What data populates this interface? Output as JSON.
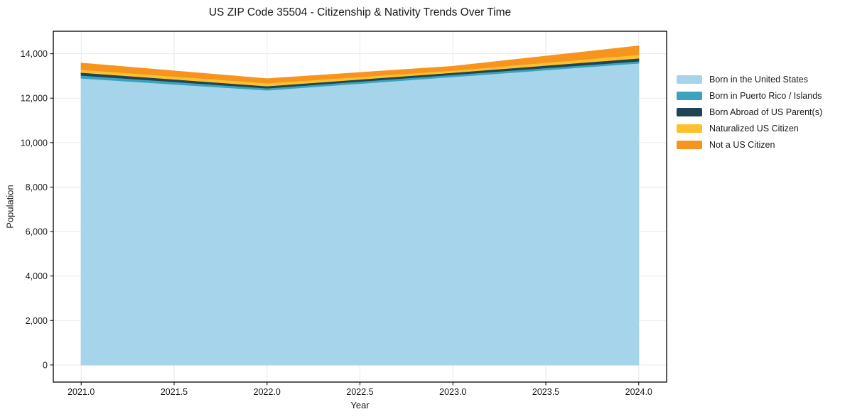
{
  "chart_data": {
    "type": "area",
    "stacked": true,
    "title": "US ZIP Code 35504 - Citizenship & Nativity Trends Over Time",
    "xlabel": "Year",
    "ylabel": "Population",
    "x": [
      2021,
      2022,
      2023,
      2024
    ],
    "series": [
      {
        "name": "Born in the United States",
        "color": "#a6d4ea",
        "values": [
          12900,
          12360,
          12965,
          13575
        ]
      },
      {
        "name": "Born in Puerto Rico / Islands",
        "color": "#3ba3bd",
        "values": [
          130,
          95,
          95,
          95
        ]
      },
      {
        "name": "Born Abroad of US Parent(s)",
        "color": "#1f4456",
        "values": [
          130,
          95,
          95,
          130
        ]
      },
      {
        "name": "Naturalized US Citizen",
        "color": "#fcc22d",
        "values": [
          130,
          130,
          95,
          160
        ]
      },
      {
        "name": "Not a US Citizen",
        "color": "#f7941e",
        "values": [
          285,
          190,
          180,
          385
        ]
      }
    ],
    "totals": [
      13575,
      12870,
      13430,
      14345
    ],
    "xlim": [
      2020.85,
      2024.15
    ],
    "ylim": [
      -770,
      15010
    ],
    "xticks": {
      "values": [
        2021.0,
        2021.5,
        2022.0,
        2022.5,
        2023.0,
        2023.5,
        2024.0
      ],
      "labels": [
        "2021.0",
        "2021.5",
        "2022.0",
        "2022.5",
        "2023.0",
        "2023.5",
        "2024.0"
      ]
    },
    "yticks": {
      "values": [
        0,
        2000,
        4000,
        6000,
        8000,
        10000,
        12000,
        14000
      ],
      "labels": [
        "0",
        "2,000",
        "4,000",
        "6,000",
        "8,000",
        "10,000",
        "12,000",
        "14,000"
      ]
    },
    "grid": true,
    "legend_position": "right-outside",
    "axes": {
      "spine_color": "#000000",
      "grid_color": "#e9e9e9",
      "text_color": "#1a1a1a",
      "background": "#ffffff"
    }
  }
}
